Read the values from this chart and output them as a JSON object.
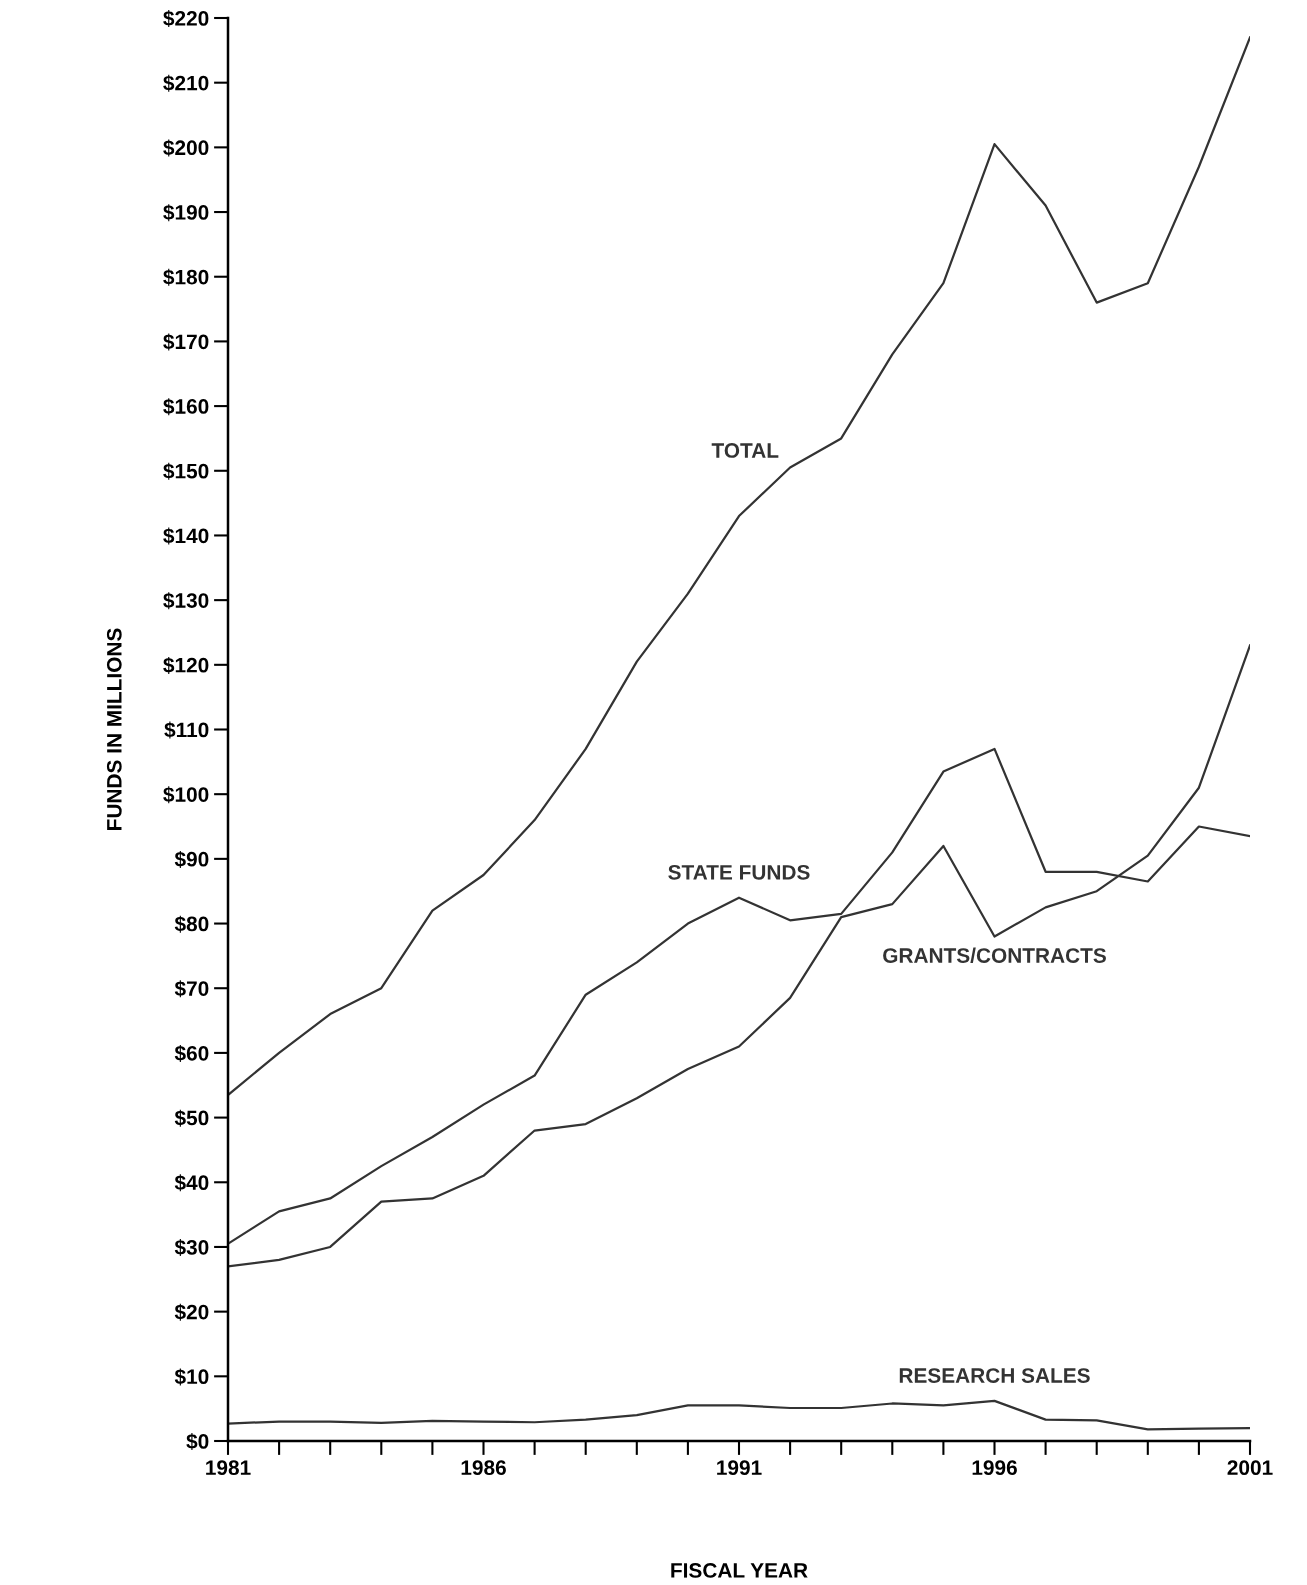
{
  "chart_data": {
    "type": "line",
    "xlabel": "FISCAL YEAR",
    "ylabel": "FUNDS IN MILLIONS",
    "x": [
      1981,
      1982,
      1983,
      1984,
      1985,
      1986,
      1987,
      1988,
      1989,
      1990,
      1991,
      1992,
      1993,
      1994,
      1995,
      1996,
      1997,
      1998,
      1999,
      2000,
      2001
    ],
    "series": [
      {
        "name": "TOTAL",
        "color": "#333333",
        "values": [
          53.5,
          60,
          66,
          70,
          82,
          87.5,
          96,
          107,
          120.5,
          131,
          143,
          150.5,
          155,
          168,
          179,
          200.5,
          191,
          176,
          179,
          197,
          217
        ]
      },
      {
        "name": "STATE FUNDS",
        "color": "#333333",
        "values": [
          30.5,
          35.5,
          37.5,
          42.5,
          47,
          52,
          56.5,
          69,
          74,
          80,
          84,
          80.5,
          81.5,
          91,
          103.5,
          107,
          88,
          88,
          86.5,
          95,
          93.5
        ]
      },
      {
        "name": "GRANTS/CONTRACTS",
        "color": "#333333",
        "values": [
          27,
          28,
          30,
          37,
          37.5,
          41,
          48,
          49,
          53,
          57.5,
          61,
          68.5,
          81,
          83,
          92,
          78,
          82.5,
          85,
          90.5,
          101,
          123
        ]
      },
      {
        "name": "RESEARCH SALES",
        "color": "#333333",
        "values": [
          2.7,
          3,
          3,
          2.8,
          3.1,
          3,
          2.9,
          3.3,
          4,
          5.5,
          5.5,
          5.1,
          5.1,
          5.8,
          5.5,
          6.2,
          3.3,
          3.2,
          1.8,
          1.9,
          2
        ]
      }
    ],
    "xlim": [
      1981,
      2001
    ],
    "ylim": [
      0,
      220
    ],
    "xticks": [
      1981,
      {
        "value": 1982,
        "label": null
      },
      {
        "value": 1983,
        "label": null
      },
      {
        "value": 1984,
        "label": null
      },
      {
        "value": 1985,
        "label": null
      },
      1986,
      {
        "value": 1987,
        "label": null
      },
      {
        "value": 1988,
        "label": null
      },
      {
        "value": 1989,
        "label": null
      },
      {
        "value": 1990,
        "label": null
      },
      1991,
      {
        "value": 1992,
        "label": null
      },
      {
        "value": 1993,
        "label": null
      },
      {
        "value": 1994,
        "label": null
      },
      {
        "value": 1995,
        "label": null
      },
      1996,
      {
        "value": 1997,
        "label": null
      },
      {
        "value": 1998,
        "label": null
      },
      {
        "value": 1999,
        "label": null
      },
      {
        "value": 2000,
        "label": null
      },
      2001
    ],
    "yticks": [
      {
        "value": 0,
        "label": "$0"
      },
      {
        "value": 10,
        "label": "$10"
      },
      {
        "value": 20,
        "label": "$20"
      },
      {
        "value": 30,
        "label": "$30"
      },
      {
        "value": 40,
        "label": "$40"
      },
      {
        "value": 50,
        "label": "$50"
      },
      {
        "value": 60,
        "label": "$60"
      },
      {
        "value": 70,
        "label": "$70"
      },
      {
        "value": 80,
        "label": "$80"
      },
      {
        "value": 90,
        "label": "$90"
      },
      {
        "value": 100,
        "label": "$100"
      },
      {
        "value": 110,
        "label": "$110"
      },
      {
        "value": 120,
        "label": "$120"
      },
      {
        "value": 130,
        "label": "$130"
      },
      {
        "value": 140,
        "label": "$140"
      },
      {
        "value": 150,
        "label": "$150"
      },
      {
        "value": 160,
        "label": "$160"
      },
      {
        "value": 170,
        "label": "$170"
      },
      {
        "value": 180,
        "label": "$180"
      },
      {
        "value": 190,
        "label": "$190"
      },
      {
        "value": 200,
        "label": "$200"
      },
      {
        "value": 210,
        "label": "$210"
      },
      {
        "value": 220,
        "label": "$220"
      }
    ],
    "grid": false,
    "marker": "none",
    "line_style": "solid"
  }
}
